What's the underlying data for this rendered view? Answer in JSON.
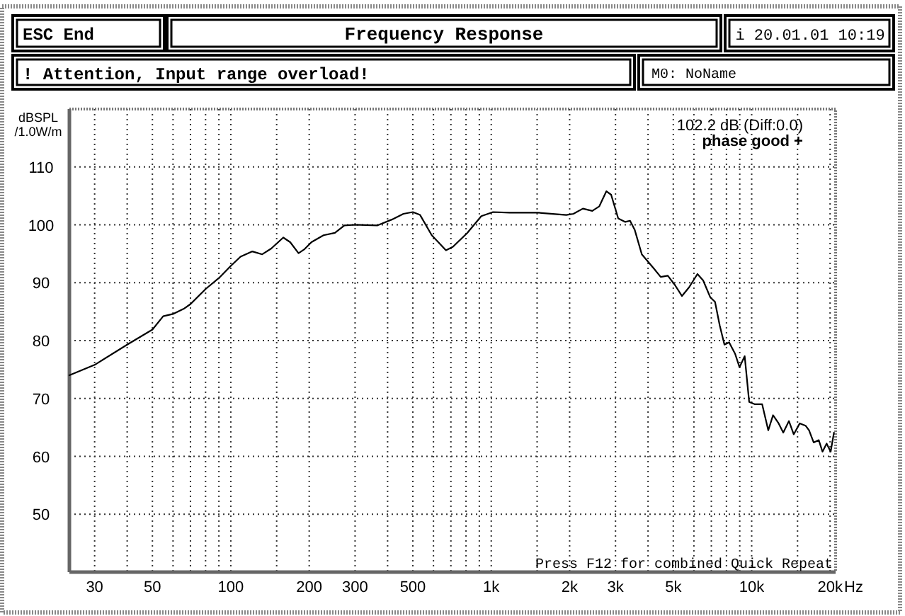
{
  "chart_data": {
    "type": "line",
    "title": "Frequency Response",
    "ylabel": "dBSPL\n/1.0W/m",
    "xlabel": "Hz",
    "annotations": [
      "ESC End",
      "i 20.01.01 10:19",
      "! Attention, Input range overload!",
      "M0: NoName",
      "102.2 dB (Diff:0.0)",
      "phase good +",
      "Press F12 for combined Quick Repeat"
    ],
    "x": [
      24,
      30,
      40,
      50,
      55,
      60,
      66,
      70,
      80,
      90,
      100,
      109,
      121,
      132,
      143,
      159,
      169,
      182,
      192,
      204,
      227,
      251,
      273,
      300,
      366,
      415,
      460,
      500,
      533,
      591,
      670,
      713,
      809,
      916,
      1016,
      1178,
      1511,
      1941,
      2067,
      2248,
      2443,
      2600,
      2768,
      2886,
      3073,
      3271,
      3411,
      3557,
      3786,
      4200,
      4474,
      4764,
      5072,
      5400,
      5750,
      6190,
      6510,
      6930,
      7230,
      7540,
      7860,
      8190,
      8640,
      8980,
      9400,
      9780,
      10300,
      10970,
      11580,
      12080,
      12690,
      13220,
      13900,
      14500,
      15300,
      16100,
      16600,
      17300,
      18100,
      18700,
      19400,
      20100,
      20700
    ],
    "series": [
      {
        "color": "#000000",
        "values": [
          74.0,
          75.8,
          79.3,
          81.9,
          84.2,
          84.6,
          85.5,
          86.3,
          88.9,
          90.8,
          92.9,
          94.5,
          95.4,
          94.9,
          95.9,
          97.8,
          97.0,
          95.1,
          95.8,
          97.0,
          98.2,
          98.6,
          99.9,
          100.0,
          99.9,
          100.9,
          101.9,
          102.2,
          101.7,
          98.2,
          95.6,
          96.2,
          98.6,
          101.5,
          102.2,
          102.1,
          102.1,
          101.7,
          101.9,
          102.8,
          102.4,
          103.2,
          105.8,
          105.2,
          101.1,
          100.5,
          100.7,
          99.1,
          94.9,
          92.5,
          91.0,
          91.2,
          89.6,
          87.7,
          89.2,
          91.5,
          90.4,
          87.5,
          86.7,
          82.6,
          79.3,
          79.7,
          77.7,
          75.4,
          77.3,
          69.4,
          69.0,
          69.0,
          64.5,
          67.1,
          65.7,
          64.1,
          66.1,
          63.8,
          65.7,
          65.3,
          64.5,
          62.4,
          62.8,
          60.8,
          62.2,
          60.8,
          64.1
        ]
      }
    ],
    "xlim": [
      24,
      21000
    ],
    "ylim": [
      40,
      120
    ],
    "xticks": [
      30,
      {
        "value": 40,
        "label": null
      },
      50,
      {
        "value": 60,
        "label": null
      },
      {
        "value": 70,
        "label": null
      },
      {
        "value": 80,
        "label": null
      },
      {
        "value": 90,
        "label": null
      },
      100,
      {
        "value": 150,
        "label": null
      },
      200,
      300,
      {
        "value": 400,
        "label": null
      },
      500,
      {
        "value": 600,
        "label": null
      },
      {
        "value": 700,
        "label": null
      },
      {
        "value": 800,
        "label": null
      },
      {
        "value": 900,
        "label": null
      },
      {
        "value": 1000,
        "label": "1k"
      },
      {
        "value": 1500,
        "label": null
      },
      {
        "value": 2000,
        "label": "2k"
      },
      {
        "value": 3000,
        "label": "3k"
      },
      {
        "value": 4000,
        "label": null
      },
      {
        "value": 5000,
        "label": "5k"
      },
      {
        "value": 6000,
        "label": null
      },
      {
        "value": 7000,
        "label": null
      },
      {
        "value": 8000,
        "label": null
      },
      {
        "value": 9000,
        "label": null
      },
      {
        "value": 10000,
        "label": "10k"
      },
      {
        "value": 15000,
        "label": null
      },
      {
        "value": 20000,
        "label": "20k"
      }
    ],
    "yticks": [
      50,
      60,
      70,
      80,
      90,
      100,
      110
    ],
    "log": "x",
    "grid": true
  }
}
